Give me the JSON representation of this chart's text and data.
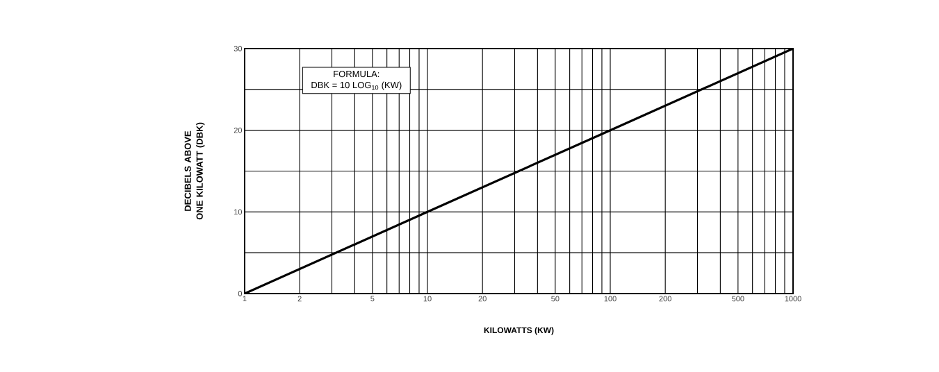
{
  "chart_data": {
    "type": "line",
    "xlabel": "KILOWATTS (KW)",
    "ylabel": "DECIBELS ABOVE ONE KILOWATT (DBK)",
    "annotations": [
      "FORMULA:",
      "DBK = 10 LOG$_{10}$ (KW)"
    ],
    "x": [
      1,
      10,
      100,
      1000
    ],
    "series": [
      {
        "color": "#000000",
        "values": [
          0,
          10,
          20,
          30
        ]
      }
    ],
    "log": "x",
    "grid": true,
    "marker": "none",
    "line_style": "solid",
    "xlim": [
      1,
      1000
    ],
    "ylim": [
      0,
      30
    ],
    "xticks": [
      1,
      2,
      {
        "value": 3,
        "label": null
      },
      {
        "value": 4,
        "label": null
      },
      5,
      {
        "value": 6,
        "label": null
      },
      {
        "value": 7,
        "label": null
      },
      {
        "value": 8,
        "label": null
      },
      {
        "value": 9,
        "label": null
      },
      10,
      20,
      {
        "value": 30,
        "label": null
      },
      {
        "value": 40,
        "label": null
      },
      50,
      {
        "value": 60,
        "label": null
      },
      {
        "value": 70,
        "label": null
      },
      {
        "value": 80,
        "label": null
      },
      {
        "value": 90,
        "label": null
      },
      100,
      200,
      {
        "value": 300,
        "label": null
      },
      {
        "value": 400,
        "label": null
      },
      500,
      {
        "value": 600,
        "label": null
      },
      {
        "value": 700,
        "label": null
      },
      {
        "value": 800,
        "label": null
      },
      {
        "value": 900,
        "label": null
      },
      1000
    ],
    "yticks": [
      0,
      {
        "value": 5,
        "label": null
      },
      10,
      {
        "value": 15,
        "label": null
      },
      20,
      {
        "value": 25,
        "label": null
      },
      30
    ]
  }
}
